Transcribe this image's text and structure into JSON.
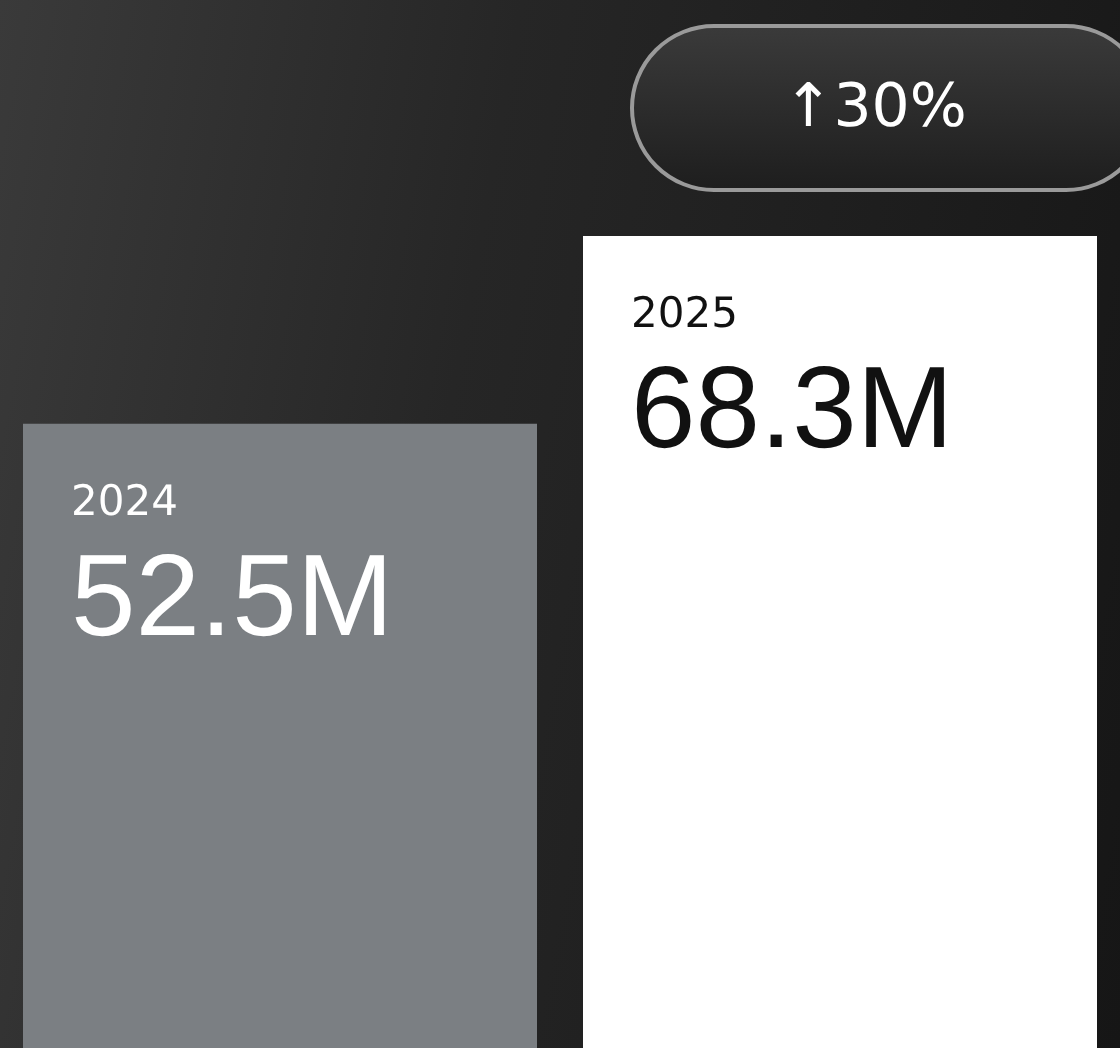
{
  "chart_data": {
    "type": "bar",
    "categories": [
      "2024",
      "2025"
    ],
    "values": [
      52.5,
      68.3
    ],
    "colors": [
      "#7b7f83",
      "#ffffff"
    ],
    "value_labels": [
      "52.5M",
      "68.3M"
    ],
    "annotations": [
      "↑30%"
    ]
  }
}
